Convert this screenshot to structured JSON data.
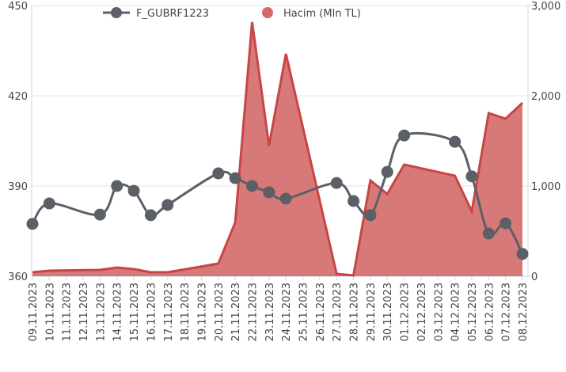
{
  "chart_data": {
    "type": "line",
    "x": [
      "09.11.2023",
      "10.11.2023",
      "13.11.2023",
      "14.11.2023",
      "15.11.2023",
      "16.11.2023",
      "17.11.2023",
      "20.11.2023",
      "21.11.2023",
      "22.11.2023",
      "23.11.2023",
      "24.11.2023",
      "27.11.2023",
      "28.11.2023",
      "29.11.2023",
      "30.11.2023",
      "01.12.2023",
      "04.12.2023",
      "05.12.2023",
      "06.12.2023",
      "07.12.2023",
      "08.12.2023"
    ],
    "xticks": [
      "09.11.2023",
      "10.11.2023",
      "11.11.2023",
      "12.11.2023",
      "13.11.2023",
      "14.11.2023",
      "15.11.2023",
      "16.11.2023",
      "17.11.2023",
      "18.11.2023",
      "19.11.2023",
      "20.11.2023",
      "21.11.2023",
      "22.11.2023",
      "23.11.2023",
      "24.11.2023",
      "25.11.2023",
      "26.11.2023",
      "27.11.2023",
      "28.11.2023",
      "29.11.2023",
      "30.11.2023",
      "01.12.2023",
      "02.12.2023",
      "03.12.2023",
      "04.12.2023",
      "05.12.2023",
      "06.12.2023",
      "07.12.2023",
      "08.12.2023"
    ],
    "series": [
      {
        "name": "Hacim (Mln TL)",
        "type": "area",
        "axis": "y2",
        "color": "#d46a6a",
        "values": [
          44,
          61,
          70,
          96,
          79,
          44,
          44,
          140,
          596,
          2816,
          1447,
          2465,
          26,
          9,
          1061,
          912,
          1237,
          1114,
          719,
          1807,
          1746,
          1921
        ]
      },
      {
        "name": "F_GUBRF1223",
        "type": "line",
        "color": "#5b5f66",
        "values": [
          377.4,
          384.2,
          380.5,
          390,
          388.4,
          380.3,
          383.7,
          394.2,
          392.6,
          390,
          387.9,
          385.8,
          391,
          385,
          380.3,
          394.7,
          406.8,
          404.7,
          393.2,
          374.2,
          377.6,
          367.4
        ]
      }
    ],
    "ylim": [
      360,
      450
    ],
    "yticks": [
      360,
      390,
      420,
      450
    ],
    "y2lim": [
      0,
      3000
    ],
    "y2ticks": [
      0,
      {
        "value": 1000,
        "label": "1,000"
      },
      {
        "value": 2000,
        "label": "2,000"
      },
      {
        "value": 3000,
        "label": "3,000"
      }
    ],
    "grid": true
  }
}
